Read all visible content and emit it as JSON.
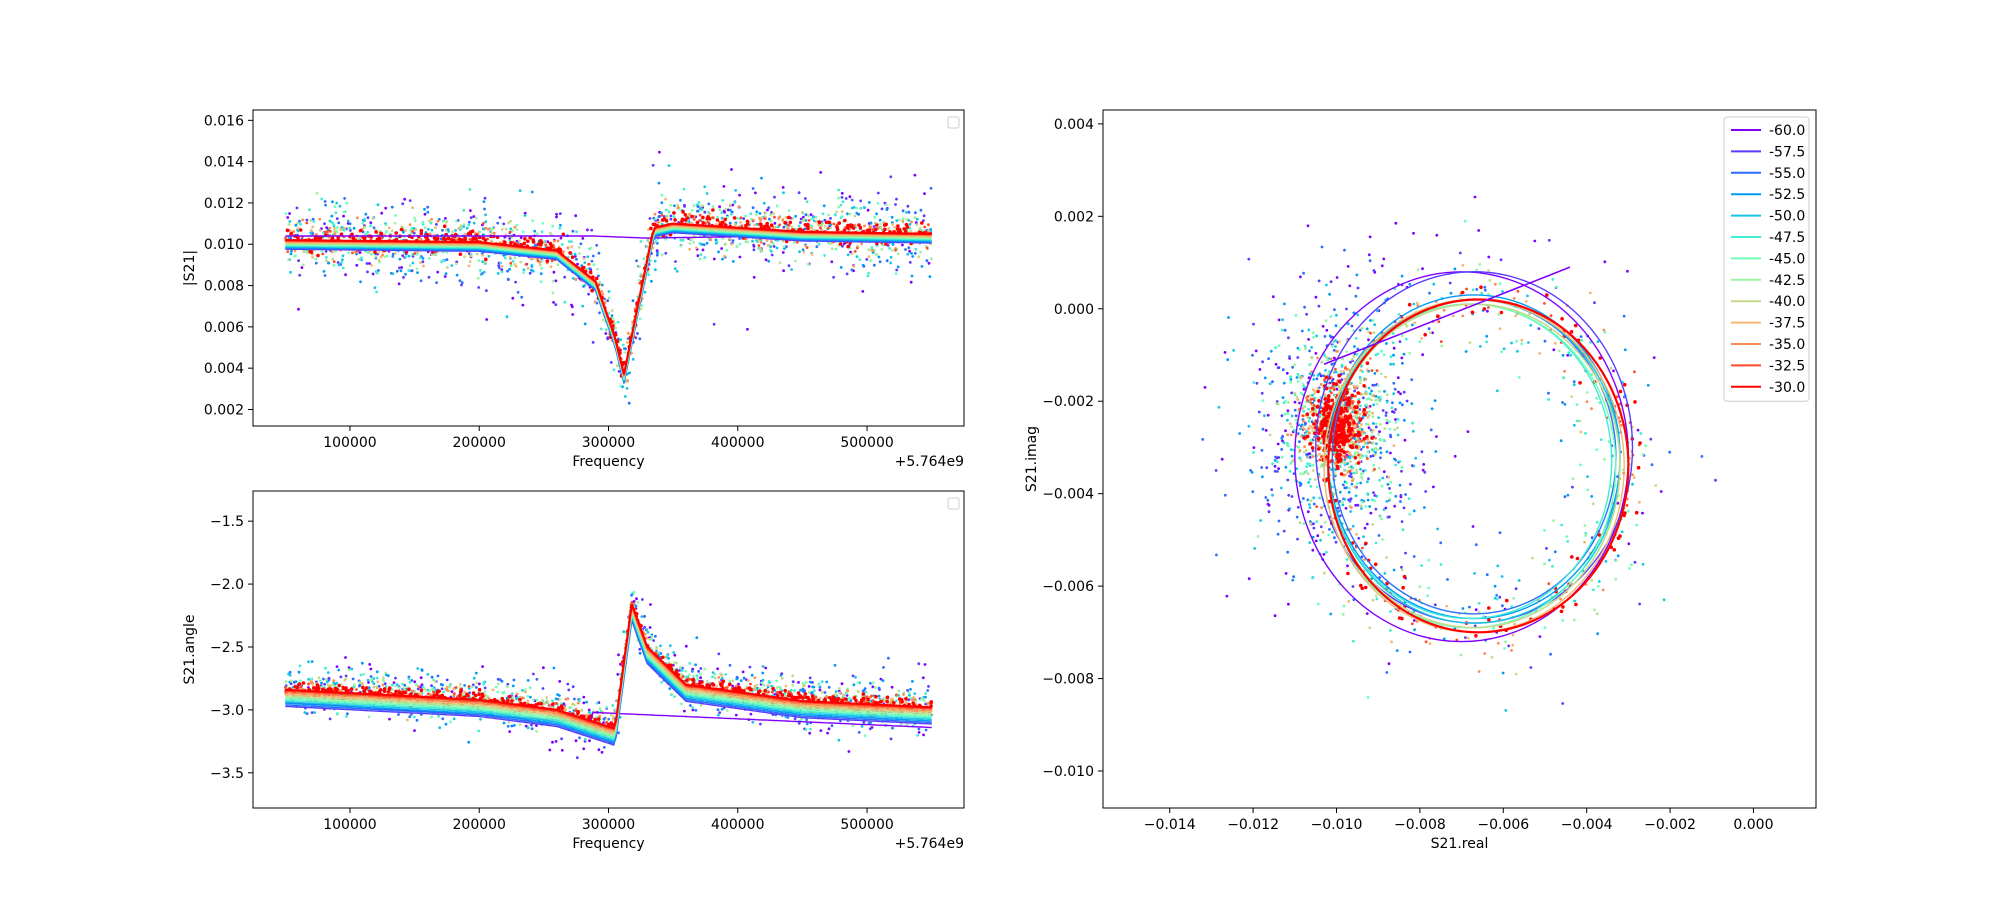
{
  "chart_data": [
    {
      "type": "line",
      "panel": "magnitude",
      "xlabel": "Frequency",
      "ylabel": "|S21|",
      "offset_label": "+5.764e9",
      "xlim": [
        25000,
        575000
      ],
      "ylim": [
        0.0012,
        0.0165
      ],
      "xticks": [
        100000,
        200000,
        300000,
        400000,
        500000
      ],
      "xtick_labels": [
        "100000",
        "200000",
        "300000",
        "400000",
        "500000"
      ],
      "yticks": [
        0.002,
        0.004,
        0.006,
        0.008,
        0.01,
        0.012,
        0.014,
        0.016
      ],
      "ytick_labels": [
        "0.002",
        "0.004",
        "0.006",
        "0.008",
        "0.010",
        "0.012",
        "0.014",
        "0.016"
      ],
      "legend": "empty-box top-right",
      "x_range": [
        50000,
        550000
      ],
      "series_fits": {
        "-30.0": {
          "baseline": [
            [
              50000,
              0.0102
            ],
            [
              200000,
              0.0101
            ],
            [
              260000,
              0.0097
            ],
            [
              290000,
              0.0082
            ],
            [
              305000,
              0.0055
            ],
            [
              312000,
              0.0037
            ],
            [
              320000,
              0.0062
            ],
            [
              335000,
              0.0108
            ],
            [
              350000,
              0.011
            ],
            [
              450000,
              0.0106
            ],
            [
              550000,
              0.0105
            ]
          ]
        },
        "-60.0": {
          "baseline": [
            [
              50000,
              0.0104
            ],
            [
              287000,
              0.0104
            ],
            [
              287500,
              0.0046
            ],
            [
              288000,
              0.0104
            ],
            [
              330000,
              0.0103
            ],
            [
              550000,
              0.0105
            ]
          ]
        }
      }
    },
    {
      "type": "line",
      "panel": "phase",
      "xlabel": "Frequency",
      "ylabel": "S21.angle",
      "offset_label": "+5.764e9",
      "xlim": [
        25000,
        575000
      ],
      "ylim": [
        -3.78,
        -1.26
      ],
      "xticks": [
        100000,
        200000,
        300000,
        400000,
        500000
      ],
      "xtick_labels": [
        "100000",
        "200000",
        "300000",
        "400000",
        "500000"
      ],
      "yticks": [
        -3.5,
        -3.0,
        -2.5,
        -2.0,
        -1.5
      ],
      "ytick_labels": [
        "−3.5",
        "−3.0",
        "−2.5",
        "−2.0",
        "−1.5"
      ],
      "legend": "empty-box top-right",
      "series_fits": {
        "-30.0": {
          "baseline": [
            [
              50000,
              -2.84
            ],
            [
              200000,
              -2.92
            ],
            [
              260000,
              -3.0
            ],
            [
              290000,
              -3.1
            ],
            [
              305000,
              -3.15
            ],
            [
              318000,
              -2.16
            ],
            [
              330000,
              -2.5
            ],
            [
              360000,
              -2.8
            ],
            [
              450000,
              -2.93
            ],
            [
              550000,
              -2.98
            ]
          ]
        },
        "-60.0": {
          "baseline": [
            [
              50000,
              -2.94
            ],
            [
              287000,
              -3.1
            ],
            [
              287500,
              -3.33
            ],
            [
              288000,
              -3.02
            ],
            [
              550000,
              -3.14
            ]
          ]
        }
      }
    },
    {
      "type": "scatter",
      "panel": "iq",
      "xlabel": "S21.real",
      "ylabel": "S21.imag",
      "xlim": [
        -0.0156,
        0.0015
      ],
      "ylim": [
        -0.0108,
        0.0043
      ],
      "xticks": [
        -0.014,
        -0.012,
        -0.01,
        -0.008,
        -0.006,
        -0.004,
        -0.002,
        0.0
      ],
      "xtick_labels": [
        "−0.014",
        "−0.012",
        "−0.010",
        "−0.008",
        "−0.006",
        "−0.004",
        "−0.002",
        "0.000"
      ],
      "yticks": [
        -0.01,
        -0.008,
        -0.006,
        -0.004,
        -0.002,
        0.0,
        0.002,
        0.004
      ],
      "ytick_labels": [
        "−0.010",
        "−0.008",
        "−0.006",
        "−0.004",
        "−0.002",
        "0.000",
        "0.002",
        "0.004"
      ],
      "legend": "top-right",
      "series": [
        {
          "name": "-60.0",
          "color": "#8000ff",
          "circle": {
            "cx": -0.007,
            "cy": -0.0032,
            "r": 0.004
          }
        },
        {
          "name": "-57.5",
          "color": "#5a3cff",
          "circle": {
            "cx": -0.0067,
            "cy": -0.003,
            "r": 0.0038
          }
        },
        {
          "name": "-55.0",
          "color": "#2c6fff",
          "circle": {
            "cx": -0.0067,
            "cy": -0.0032,
            "r": 0.0034
          }
        },
        {
          "name": "-52.5",
          "color": "#009bf5",
          "circle": {
            "cx": -0.0067,
            "cy": -0.0032,
            "r": 0.0035
          }
        },
        {
          "name": "-50.0",
          "color": "#16c6e6",
          "circle": {
            "cx": -0.0067,
            "cy": -0.0033,
            "r": 0.0035
          }
        },
        {
          "name": "-47.5",
          "color": "#40ecd4",
          "circle": {
            "cx": -0.0068,
            "cy": -0.0033,
            "r": 0.0034
          }
        },
        {
          "name": "-45.0",
          "color": "#70ffb8",
          "circle": {
            "cx": -0.0068,
            "cy": -0.0034,
            "r": 0.0035
          }
        },
        {
          "name": "-42.5",
          "color": "#9cf3a4",
          "circle": {
            "cx": -0.0067,
            "cy": -0.0034,
            "r": 0.0035
          }
        },
        {
          "name": "-40.0",
          "color": "#c4d98a",
          "circle": {
            "cx": -0.0067,
            "cy": -0.0034,
            "r": 0.0035
          }
        },
        {
          "name": "-37.5",
          "color": "#f3b872",
          "circle": {
            "cx": -0.0067,
            "cy": -0.0034,
            "r": 0.0036
          }
        },
        {
          "name": "-35.0",
          "color": "#ff8a50",
          "circle": {
            "cx": -0.0066,
            "cy": -0.0034,
            "r": 0.0036
          }
        },
        {
          "name": "-32.5",
          "color": "#ff4a28",
          "circle": {
            "cx": -0.0066,
            "cy": -0.0034,
            "r": 0.0036
          }
        },
        {
          "name": "-30.0",
          "color": "#ff0000",
          "circle": {
            "cx": -0.0066,
            "cy": -0.0034,
            "r": 0.0036
          }
        }
      ]
    }
  ]
}
